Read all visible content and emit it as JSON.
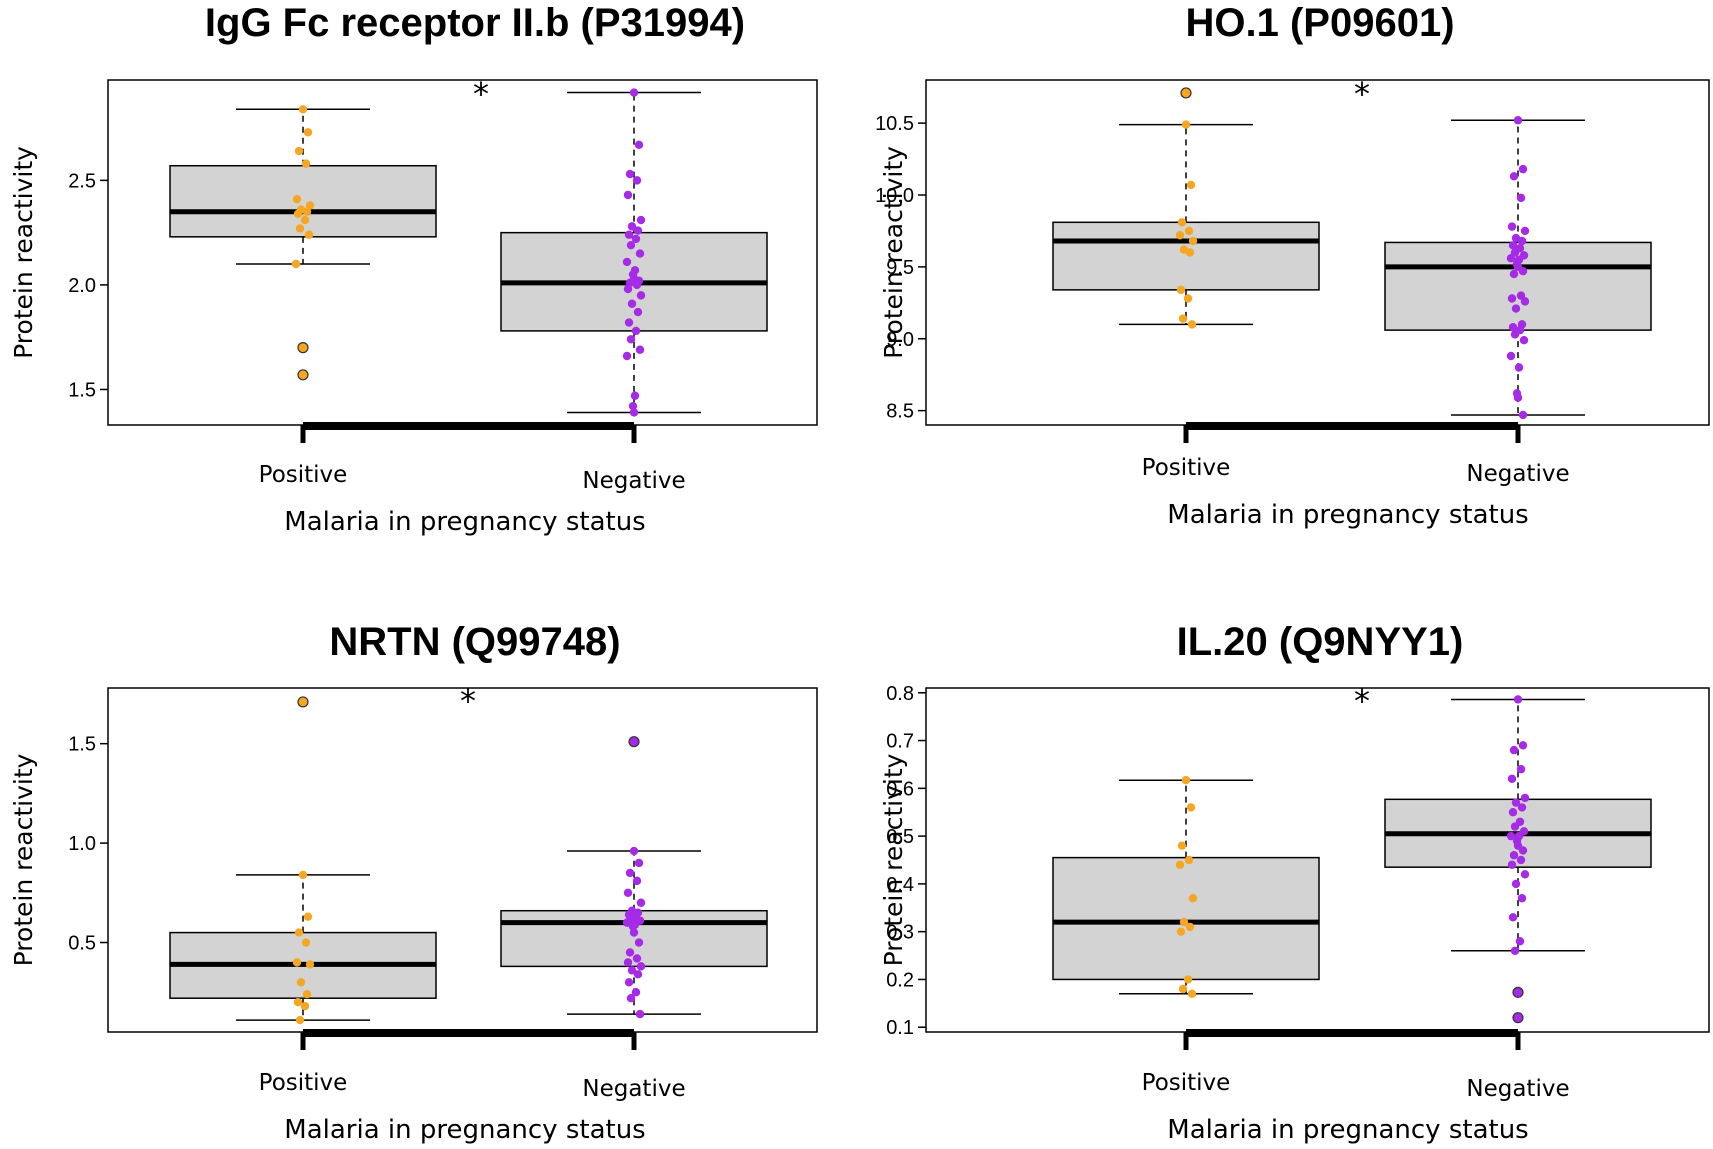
{
  "colors": {
    "positive": "#F5A623",
    "negative": "#A52BE6",
    "box_fill": "#D3D3D3",
    "outlier_outline": "#333333"
  },
  "chart_data": [
    {
      "type": "box",
      "title": "IgG Fc receptor II.b (P31994)",
      "xlabel": "Malaria in pregnancy status",
      "ylabel": "Protein reactivity",
      "significance": "*",
      "ylim": [
        1.33,
        2.98
      ],
      "yticks": [
        1.5,
        2.0,
        2.5
      ],
      "ytick_labels": [
        "1.5",
        "2.0",
        "2.5"
      ],
      "categories": [
        "Positive",
        "Negative"
      ],
      "groups": [
        {
          "name": "Positive",
          "whisker_low": 2.1,
          "q1": 2.23,
          "median": 2.35,
          "q3": 2.57,
          "whisker_high": 2.84,
          "points": [
            2.84,
            2.73,
            2.64,
            2.58,
            2.41,
            2.38,
            2.36,
            2.35,
            2.34,
            2.31,
            2.27,
            2.24,
            2.1
          ],
          "outliers": [
            1.7,
            1.57
          ]
        },
        {
          "name": "Negative",
          "whisker_low": 1.39,
          "q1": 1.78,
          "median": 2.01,
          "q3": 2.25,
          "whisker_high": 2.92,
          "points": [
            2.92,
            2.67,
            2.53,
            2.5,
            2.43,
            2.31,
            2.28,
            2.26,
            2.24,
            2.22,
            2.19,
            2.15,
            2.11,
            2.07,
            2.05,
            2.03,
            2.02,
            2.01,
            2.0,
            1.98,
            1.95,
            1.91,
            1.87,
            1.82,
            1.78,
            1.74,
            1.69,
            1.66,
            1.47,
            1.42,
            1.39
          ],
          "outliers": []
        }
      ]
    },
    {
      "type": "box",
      "title": "HO.1 (P09601)",
      "xlabel": "Malaria in pregnancy status",
      "ylabel": "Protein reactivity",
      "significance": "*",
      "ylim": [
        8.4,
        10.8
      ],
      "yticks": [
        8.5,
        9.0,
        9.5,
        10.0,
        10.5
      ],
      "ytick_labels": [
        "8.5",
        "9.0",
        "9.5",
        "10.0",
        "10.5"
      ],
      "categories": [
        "Positive",
        "Negative"
      ],
      "groups": [
        {
          "name": "Positive",
          "whisker_low": 9.1,
          "q1": 9.34,
          "median": 9.68,
          "q3": 9.81,
          "whisker_high": 10.49,
          "points": [
            10.49,
            10.07,
            9.81,
            9.75,
            9.72,
            9.68,
            9.62,
            9.6,
            9.34,
            9.28,
            9.14,
            9.1
          ],
          "outliers": [
            10.71
          ]
        },
        {
          "name": "Negative",
          "whisker_low": 8.47,
          "q1": 9.06,
          "median": 9.5,
          "q3": 9.67,
          "whisker_high": 10.52,
          "points": [
            10.52,
            10.18,
            10.13,
            9.98,
            9.78,
            9.75,
            9.7,
            9.68,
            9.65,
            9.63,
            9.6,
            9.58,
            9.56,
            9.55,
            9.52,
            9.5,
            9.47,
            9.45,
            9.3,
            9.28,
            9.26,
            9.21,
            9.1,
            9.08,
            9.06,
            9.03,
            8.99,
            8.88,
            8.8,
            8.62,
            8.59,
            8.47
          ],
          "outliers": []
        }
      ]
    },
    {
      "type": "box",
      "title": "NRTN (Q99748)",
      "xlabel": "Malaria in pregnancy status",
      "ylabel": "Protein reactivity",
      "significance": "*",
      "ylim": [
        0.05,
        1.78
      ],
      "yticks": [
        0.5,
        1.0,
        1.5
      ],
      "ytick_labels": [
        "0.5",
        "1.0",
        "1.5"
      ],
      "categories": [
        "Positive",
        "Negative"
      ],
      "groups": [
        {
          "name": "Positive",
          "whisker_low": 0.11,
          "q1": 0.22,
          "median": 0.39,
          "q3": 0.55,
          "whisker_high": 0.84,
          "points": [
            0.84,
            0.63,
            0.55,
            0.5,
            0.4,
            0.39,
            0.3,
            0.24,
            0.2,
            0.18,
            0.11
          ],
          "outliers": [
            1.71
          ]
        },
        {
          "name": "Negative",
          "whisker_low": 0.14,
          "q1": 0.38,
          "median": 0.6,
          "q3": 0.66,
          "whisker_high": 0.96,
          "points": [
            0.96,
            0.9,
            0.85,
            0.81,
            0.75,
            0.7,
            0.66,
            0.65,
            0.64,
            0.63,
            0.62,
            0.61,
            0.6,
            0.59,
            0.58,
            0.55,
            0.5,
            0.45,
            0.42,
            0.4,
            0.38,
            0.36,
            0.34,
            0.3,
            0.25,
            0.22,
            0.14
          ],
          "outliers": [
            1.51
          ]
        }
      ]
    },
    {
      "type": "box",
      "title": "IL.20 (Q9NYY1)",
      "xlabel": "Malaria in pregnancy status",
      "ylabel": "Protein reactivity",
      "significance": "*",
      "ylim": [
        0.09,
        0.81
      ],
      "yticks": [
        0.1,
        0.2,
        0.3,
        0.4,
        0.5,
        0.6,
        0.7,
        0.8
      ],
      "ytick_labels": [
        "0.1",
        "0.2",
        "0.3",
        "0.4",
        "0.5",
        "0.6",
        "0.7",
        "0.8"
      ],
      "categories": [
        "Positive",
        "Negative"
      ],
      "groups": [
        {
          "name": "Positive",
          "whisker_low": 0.17,
          "q1": 0.2,
          "median": 0.32,
          "q3": 0.455,
          "whisker_high": 0.617,
          "points": [
            0.617,
            0.56,
            0.48,
            0.45,
            0.44,
            0.37,
            0.32,
            0.31,
            0.3,
            0.2,
            0.18,
            0.17
          ],
          "outliers": []
        },
        {
          "name": "Negative",
          "whisker_low": 0.26,
          "q1": 0.435,
          "median": 0.505,
          "q3": 0.577,
          "whisker_high": 0.786,
          "points": [
            0.786,
            0.69,
            0.68,
            0.64,
            0.62,
            0.58,
            0.57,
            0.56,
            0.55,
            0.53,
            0.52,
            0.51,
            0.5,
            0.5,
            0.49,
            0.48,
            0.47,
            0.46,
            0.45,
            0.44,
            0.42,
            0.4,
            0.37,
            0.33,
            0.28,
            0.26
          ],
          "outliers": [
            0.173,
            0.12
          ]
        }
      ]
    }
  ]
}
